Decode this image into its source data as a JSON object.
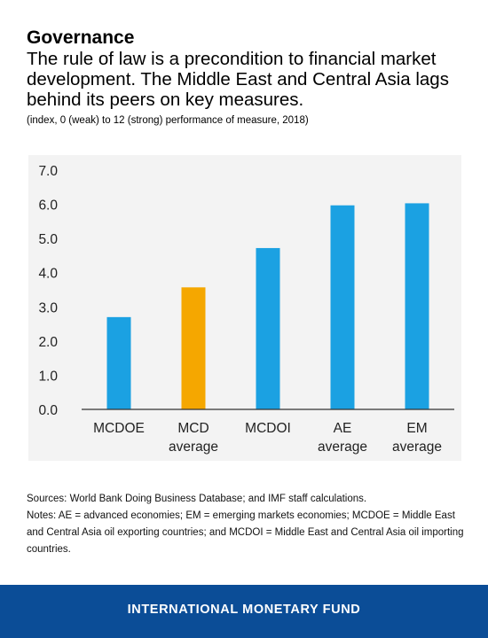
{
  "header": {
    "title": "Governance",
    "subtitle": "The rule of law is a precondition to financial market development. The Middle East and Central Asia lags behind its peers on key measures.",
    "note": "(index, 0 (weak) to 12 (strong) performance of measure, 2018)"
  },
  "chart_data": {
    "type": "bar",
    "categories": [
      [
        "MCDOE"
      ],
      [
        "MCD",
        "average"
      ],
      [
        "MCDOI"
      ],
      [
        "AE",
        "average"
      ],
      [
        "EM",
        "average"
      ]
    ],
    "values": [
      2.7,
      3.57,
      4.72,
      5.97,
      6.03
    ],
    "colors": [
      "#1ba1e2",
      "#f5a700",
      "#1ba1e2",
      "#1ba1e2",
      "#1ba1e2"
    ],
    "ylim": [
      0,
      7
    ],
    "yticks": [
      "0.0",
      "1.0",
      "2.0",
      "3.0",
      "4.0",
      "5.0",
      "6.0",
      "7.0"
    ],
    "grid": false,
    "legend": "none"
  },
  "footer": {
    "sources": "Sources: World Bank Doing Business Database; and IMF staff calculations.",
    "notes": "Notes: AE = advanced economies; EM = emerging markets economies; MCDOE = Middle East and Central Asia oil exporting countries; and MCDOI = Middle East and Central Asia oil importing countries."
  },
  "brand": {
    "name": "INTERNATIONAL MONETARY FUND",
    "bar_color": "#0b4d97"
  }
}
